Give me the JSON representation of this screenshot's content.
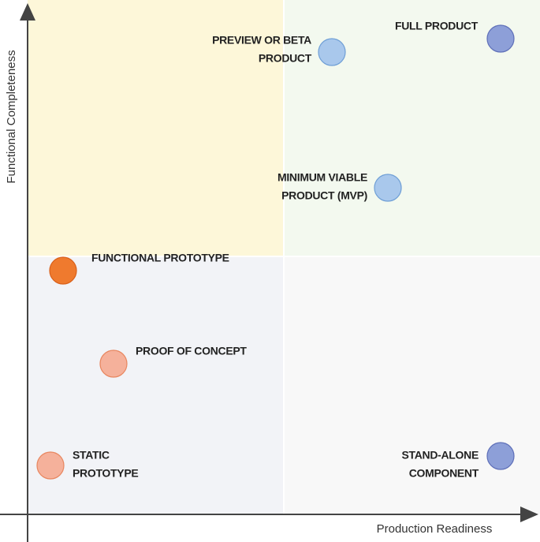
{
  "axes": {
    "x_label": "Production Readiness",
    "y_label": "Functional Completeness"
  },
  "nodes": [
    {
      "label": [
        "PREVIEW OR BETA",
        "PRODUCT"
      ]
    },
    {
      "label": [
        "FULL PRODUCT"
      ]
    },
    {
      "label": [
        "MINIMUM VIABLE",
        "PRODUCT (MVP)"
      ]
    },
    {
      "label": [
        "FUNCTIONAL PROTOTYPE"
      ]
    },
    {
      "label": [
        "PROOF OF CONCEPT"
      ]
    },
    {
      "label": [
        "STATIC",
        "PROTOTYPE"
      ]
    },
    {
      "label": [
        "STAND-ALONE",
        "COMPONENT"
      ]
    }
  ]
}
